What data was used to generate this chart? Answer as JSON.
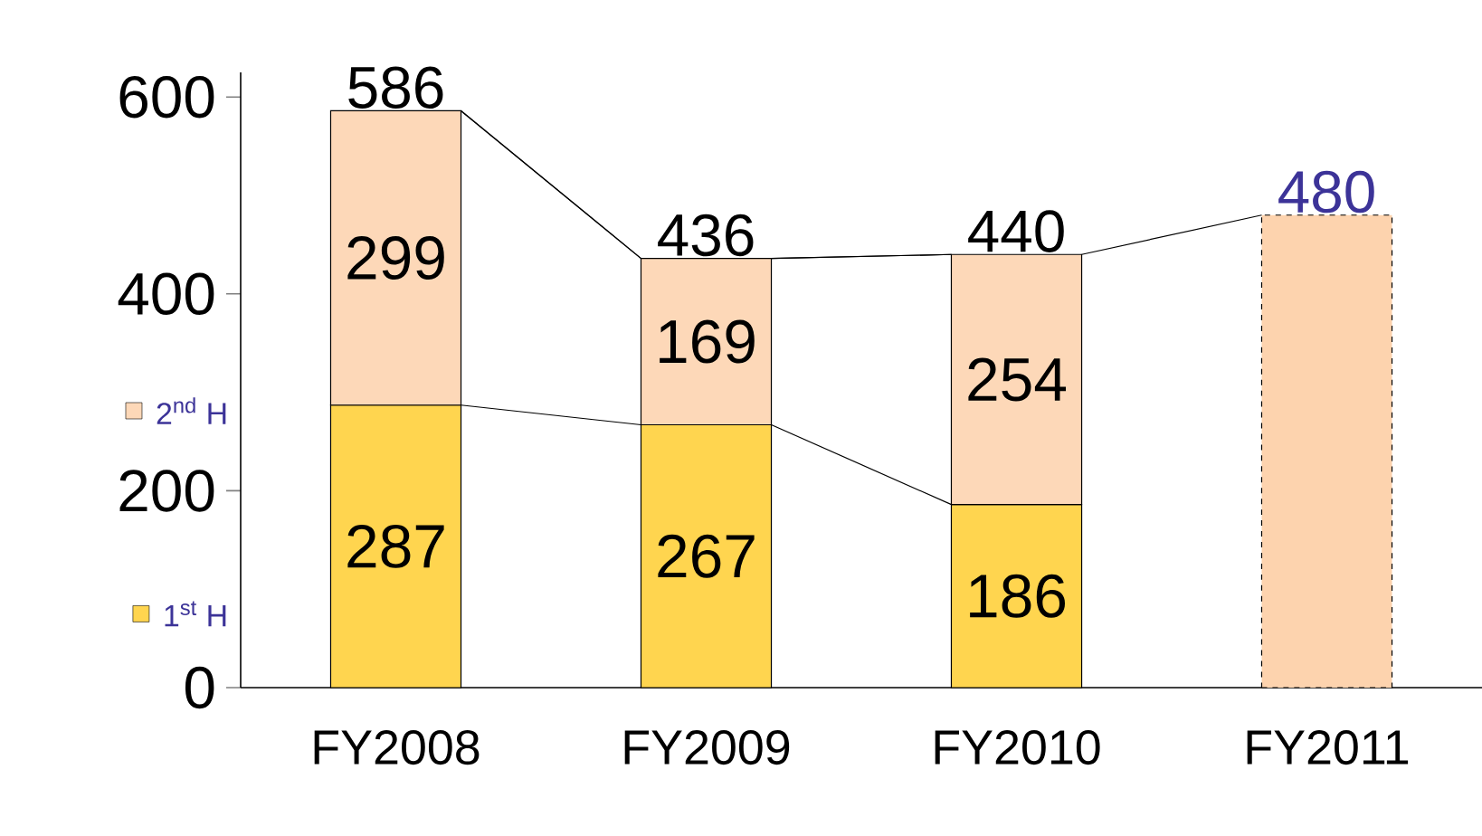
{
  "chart_data": {
    "type": "bar",
    "stacked": true,
    "categories": [
      "FY2008",
      "FY2009",
      "FY2010",
      "FY2011"
    ],
    "series": [
      {
        "name": "1$^{st}$ H",
        "color": "#ffd54f",
        "values": [
          287,
          267,
          186,
          null
        ]
      },
      {
        "name": "2$^{nd}$ H",
        "color": "#fdd8b8",
        "values": [
          299,
          169,
          254,
          null
        ]
      },
      {
        "color": "#fdd3ae",
        "values": [
          null,
          null,
          null,
          480
        ],
        "line_style": "dashed"
      }
    ],
    "totals": [
      "586",
      "436",
      "440",
      null
    ],
    "data_labels": true,
    "legend": "left",
    "ylim": [
      0,
      625
    ],
    "yticks": [
      0,
      200,
      400,
      600
    ]
  }
}
